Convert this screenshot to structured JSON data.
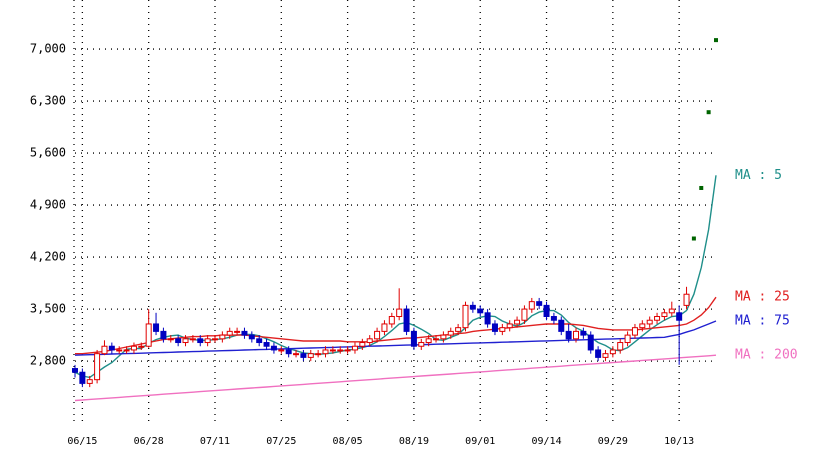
{
  "chart_data": {
    "type": "candlestick",
    "categories": [
      null,
      "06/15",
      null,
      null,
      null,
      null,
      null,
      null,
      null,
      null,
      "06/28",
      null,
      null,
      null,
      null,
      null,
      null,
      null,
      null,
      "07/11",
      null,
      null,
      null,
      null,
      null,
      null,
      null,
      null,
      "07/25",
      null,
      null,
      null,
      null,
      null,
      null,
      null,
      null,
      "08/05",
      null,
      null,
      null,
      null,
      null,
      null,
      null,
      null,
      "08/19",
      null,
      null,
      null,
      null,
      null,
      null,
      null,
      null,
      "09/01",
      null,
      null,
      null,
      null,
      null,
      null,
      null,
      null,
      "09/14",
      null,
      null,
      null,
      null,
      null,
      null,
      null,
      null,
      "09/29",
      null,
      null,
      null,
      null,
      null,
      null,
      null,
      null,
      "10/13",
      null,
      null,
      null,
      null,
      null
    ],
    "candles": [
      [
        2700,
        2750,
        2580,
        2650
      ],
      [
        2650,
        2700,
        2450,
        2500
      ],
      [
        2500,
        2600,
        2450,
        2550
      ],
      [
        2550,
        2950,
        2500,
        2900
      ],
      [
        2900,
        3080,
        2880,
        3000
      ],
      [
        3000,
        3050,
        2900,
        2950
      ],
      [
        2950,
        3000,
        2900,
        2950
      ],
      [
        2950,
        3000,
        2900,
        2950
      ],
      [
        2950,
        3050,
        2900,
        3000
      ],
      [
        3000,
        3050,
        2950,
        3000
      ],
      [
        3000,
        3500,
        2980,
        3300
      ],
      [
        3300,
        3450,
        3150,
        3200
      ],
      [
        3200,
        3250,
        3050,
        3100
      ],
      [
        3100,
        3150,
        3050,
        3100
      ],
      [
        3100,
        3150,
        3000,
        3050
      ],
      [
        3050,
        3150,
        3000,
        3100
      ],
      [
        3100,
        3150,
        3050,
        3100
      ],
      [
        3100,
        3150,
        3000,
        3050
      ],
      [
        3050,
        3150,
        3000,
        3100
      ],
      [
        3100,
        3150,
        3050,
        3100
      ],
      [
        3100,
        3200,
        3050,
        3150
      ],
      [
        3150,
        3250,
        3100,
        3200
      ],
      [
        3200,
        3250,
        3150,
        3200
      ],
      [
        3200,
        3250,
        3100,
        3150
      ],
      [
        3150,
        3200,
        3050,
        3100
      ],
      [
        3100,
        3150,
        3000,
        3050
      ],
      [
        3050,
        3100,
        2950,
        3000
      ],
      [
        3000,
        3050,
        2900,
        2950
      ],
      [
        2950,
        3000,
        2900,
        2950
      ],
      [
        2950,
        3000,
        2850,
        2900
      ],
      [
        2900,
        2950,
        2850,
        2900
      ],
      [
        2900,
        2950,
        2800,
        2850
      ],
      [
        2850,
        2950,
        2800,
        2900
      ],
      [
        2900,
        2950,
        2850,
        2900
      ],
      [
        2900,
        3000,
        2850,
        2950
      ],
      [
        2950,
        3000,
        2900,
        2950
      ],
      [
        2950,
        3000,
        2900,
        2950
      ],
      [
        2950,
        3000,
        2900,
        2950
      ],
      [
        2950,
        3050,
        2900,
        3000
      ],
      [
        3000,
        3100,
        2950,
        3050
      ],
      [
        3050,
        3150,
        3000,
        3100
      ],
      [
        3100,
        3250,
        3050,
        3200
      ],
      [
        3200,
        3350,
        3150,
        3300
      ],
      [
        3300,
        3450,
        3250,
        3400
      ],
      [
        3400,
        3780,
        3350,
        3500
      ],
      [
        3500,
        3550,
        3150,
        3200
      ],
      [
        3200,
        3250,
        2950,
        3000
      ],
      [
        3000,
        3100,
        2950,
        3050
      ],
      [
        3050,
        3150,
        3000,
        3100
      ],
      [
        3100,
        3150,
        3050,
        3100
      ],
      [
        3100,
        3200,
        3050,
        3150
      ],
      [
        3150,
        3250,
        3100,
        3200
      ],
      [
        3200,
        3300,
        3150,
        3250
      ],
      [
        3250,
        3600,
        3200,
        3550
      ],
      [
        3550,
        3600,
        3450,
        3500
      ],
      [
        3500,
        3550,
        3400,
        3450
      ],
      [
        3450,
        3500,
        3250,
        3300
      ],
      [
        3300,
        3350,
        3150,
        3200
      ],
      [
        3200,
        3300,
        3150,
        3250
      ],
      [
        3250,
        3350,
        3200,
        3300
      ],
      [
        3300,
        3400,
        3250,
        3350
      ],
      [
        3350,
        3550,
        3300,
        3500
      ],
      [
        3500,
        3650,
        3450,
        3600
      ],
      [
        3600,
        3650,
        3500,
        3550
      ],
      [
        3550,
        3600,
        3350,
        3400
      ],
      [
        3400,
        3450,
        3300,
        3350
      ],
      [
        3350,
        3400,
        3150,
        3200
      ],
      [
        3200,
        3300,
        3050,
        3100
      ],
      [
        3100,
        3250,
        3050,
        3200
      ],
      [
        3200,
        3250,
        3100,
        3150
      ],
      [
        3150,
        3200,
        2900,
        2950
      ],
      [
        2950,
        3000,
        2800,
        2850
      ],
      [
        2850,
        2950,
        2800,
        2900
      ],
      [
        2900,
        3000,
        2850,
        2950
      ],
      [
        2950,
        3100,
        2900,
        3050
      ],
      [
        3050,
        3200,
        3000,
        3150
      ],
      [
        3150,
        3300,
        3100,
        3250
      ],
      [
        3250,
        3350,
        3200,
        3300
      ],
      [
        3300,
        3400,
        3250,
        3350
      ],
      [
        3350,
        3450,
        3300,
        3400
      ],
      [
        3400,
        3500,
        3350,
        3450
      ],
      [
        3450,
        3600,
        3400,
        3500
      ],
      [
        3450,
        3550,
        2750,
        3350
      ],
      [
        3550,
        3800,
        3500,
        3700
      ],
      [
        4450,
        4450,
        4450,
        4450
      ],
      [
        5130,
        5130,
        5130,
        5130
      ],
      [
        6150,
        6150,
        6150,
        6150
      ],
      [
        7120,
        7120,
        7120,
        7120
      ]
    ],
    "up_color": "#e00000",
    "down_color": "#0000c0",
    "limit_color": "#006400",
    "series": [
      {
        "name": "MA : 5",
        "color": "#1f8f8a",
        "values": [
          2650,
          2600,
          2580,
          2650,
          2720,
          2780,
          2870,
          2960,
          2970,
          2970,
          3040,
          3090,
          3120,
          3140,
          3150,
          3110,
          3090,
          3080,
          3080,
          3090,
          3100,
          3120,
          3150,
          3160,
          3160,
          3140,
          3100,
          3060,
          3010,
          2970,
          2940,
          2910,
          2900,
          2890,
          2900,
          2910,
          2930,
          2950,
          2960,
          2980,
          3010,
          3060,
          3130,
          3210,
          3300,
          3320,
          3280,
          3230,
          3170,
          3090,
          3080,
          3120,
          3160,
          3250,
          3350,
          3390,
          3410,
          3400,
          3340,
          3300,
          3270,
          3320,
          3410,
          3460,
          3480,
          3480,
          3420,
          3320,
          3250,
          3200,
          3120,
          3050,
          3010,
          2950,
          2940,
          2980,
          3060,
          3140,
          3220,
          3290,
          3350,
          3400,
          3410,
          3480,
          3700,
          4060,
          4570,
          5300
        ]
      },
      {
        "name": "MA : 25",
        "color": "#e02020",
        "values": [
          2900,
          2900,
          2910,
          2920,
          2930,
          2950,
          2970,
          2990,
          3010,
          3030,
          3050,
          3070,
          3090,
          3100,
          3110,
          3120,
          3130,
          3130,
          3140,
          3140,
          3150,
          3150,
          3150,
          3150,
          3140,
          3130,
          3120,
          3110,
          3100,
          3090,
          3080,
          3070,
          3070,
          3070,
          3070,
          3070,
          3070,
          3060,
          3060,
          3060,
          3060,
          3070,
          3080,
          3090,
          3100,
          3110,
          3110,
          3120,
          3130,
          3140,
          3150,
          3160,
          3170,
          3180,
          3200,
          3210,
          3220,
          3230,
          3240,
          3250,
          3260,
          3270,
          3280,
          3290,
          3300,
          3300,
          3300,
          3300,
          3290,
          3280,
          3260,
          3240,
          3230,
          3220,
          3220,
          3220,
          3220,
          3230,
          3240,
          3250,
          3260,
          3270,
          3280,
          3300,
          3350,
          3420,
          3520,
          3660
        ]
      },
      {
        "name": "MA : 75",
        "color": "#2020d0",
        "values": [
          2880,
          2883,
          2886,
          2889,
          2892,
          2895,
          2898,
          2901,
          2904,
          2907,
          2910,
          2913,
          2916,
          2919,
          2922,
          2925,
          2928,
          2931,
          2934,
          2937,
          2940,
          2943,
          2946,
          2949,
          2952,
          2955,
          2958,
          2961,
          2964,
          2967,
          2970,
          2973,
          2976,
          2979,
          2982,
          2985,
          2988,
          2991,
          2994,
          2997,
          3000,
          3003,
          3006,
          3009,
          3012,
          3015,
          3018,
          3021,
          3024,
          3027,
          3030,
          3033,
          3036,
          3039,
          3042,
          3045,
          3048,
          3051,
          3054,
          3057,
          3060,
          3063,
          3066,
          3069,
          3072,
          3075,
          3078,
          3081,
          3084,
          3087,
          3090,
          3093,
          3096,
          3099,
          3102,
          3105,
          3108,
          3111,
          3114,
          3117,
          3120,
          3140,
          3160,
          3190,
          3220,
          3260,
          3300,
          3340
        ]
      },
      {
        "name": "MA : 200",
        "color": "#f070c0",
        "values": [
          2270,
          2277,
          2284,
          2291,
          2298,
          2305,
          2312,
          2319,
          2326,
          2333,
          2340,
          2347,
          2354,
          2361,
          2368,
          2375,
          2382,
          2389,
          2396,
          2403,
          2410,
          2417,
          2424,
          2431,
          2438,
          2445,
          2452,
          2459,
          2466,
          2473,
          2480,
          2487,
          2494,
          2501,
          2508,
          2515,
          2522,
          2529,
          2536,
          2543,
          2550,
          2557,
          2564,
          2571,
          2578,
          2585,
          2592,
          2599,
          2606,
          2613,
          2620,
          2627,
          2634,
          2641,
          2648,
          2655,
          2662,
          2669,
          2676,
          2683,
          2690,
          2697,
          2704,
          2711,
          2718,
          2725,
          2732,
          2739,
          2746,
          2753,
          2760,
          2767,
          2774,
          2781,
          2788,
          2795,
          2802,
          2809,
          2816,
          2823,
          2830,
          2837,
          2844,
          2851,
          2858,
          2865,
          2872,
          2879
        ]
      }
    ],
    "ylim": [
      1940,
      7660
    ],
    "yticks": [
      {
        "value": 2800,
        "label": "2,800"
      },
      {
        "value": 3500,
        "label": "3,500"
      },
      {
        "value": 4200,
        "label": "4,200"
      },
      {
        "value": 4900,
        "label": "4,900"
      },
      {
        "value": 5600,
        "label": "5,600"
      },
      {
        "value": 6300,
        "label": "6,300"
      },
      {
        "value": 7000,
        "label": "7,000"
      }
    ],
    "grid": true
  }
}
